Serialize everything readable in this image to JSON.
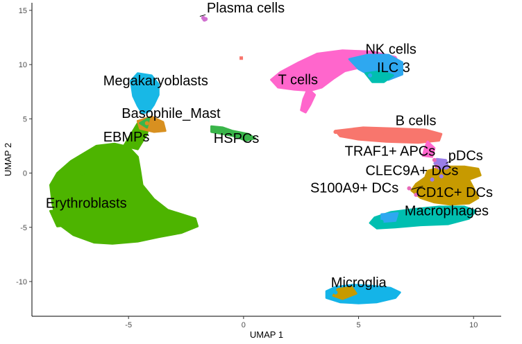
{
  "chart_data": {
    "type": "scatter",
    "title": "",
    "xlabel": "UMAP 1",
    "ylabel": "UMAP 2",
    "xlim": [
      -9.2,
      11.2
    ],
    "ylim": [
      -13.2,
      15.7
    ],
    "x_ticks": [
      -5,
      0,
      5,
      10
    ],
    "x_tick_labels": [
      "-5",
      "0",
      "5",
      "10"
    ],
    "y_ticks": [
      -10,
      -5,
      0,
      5,
      10,
      15
    ],
    "y_tick_labels": [
      "-10",
      "-5",
      "0",
      "5",
      "10",
      "15"
    ],
    "grid": false,
    "legend": "none",
    "colors": {
      "erythroblasts": "#4db400",
      "t_cells": "#ff66cc",
      "b_cells": "#f8766d",
      "nk_cells": "#2ea8f0",
      "megakaryoblasts": "#18b8e6",
      "microglia": "#14b4e8",
      "macrophages": "#00bfb0",
      "cd1c_dcs": "#c79a00",
      "hspcs": "#3ab54a",
      "basophile": "#d89020",
      "plasma": "#d070d0",
      "pdcs": "#9a7ee8",
      "traf1": "#e86ab8"
    },
    "clusters": [
      {
        "name": "Plasma cells",
        "label_x": -1.6,
        "label_y": 14.8,
        "points": [
          [
            -1.75,
            14.3
          ],
          [
            -1.7,
            14.15
          ],
          [
            -1.65,
            14.2
          ]
        ]
      },
      {
        "name": "NK cells",
        "label_x": 5.3,
        "label_y": 11.0,
        "points": [
          [
            5.0,
            10.2
          ],
          [
            5.8,
            10.0
          ],
          [
            6.3,
            9.6
          ],
          [
            5.5,
            9.0
          ]
        ]
      },
      {
        "name": "ILC 3",
        "label_x": 5.8,
        "label_y": 9.3,
        "points": [
          [
            6.0,
            9.0
          ],
          [
            5.7,
            8.6
          ]
        ]
      },
      {
        "name": "Megakaryoblasts",
        "label_x": -6.1,
        "label_y": 8.1,
        "points": [
          [
            -4.4,
            8.6
          ],
          [
            -4.2,
            7.4
          ],
          [
            -4.3,
            6.6
          ]
        ]
      },
      {
        "name": "T cells",
        "label_x": 1.5,
        "label_y": 8.2,
        "points": [
          [
            3.0,
            9.8
          ],
          [
            2.3,
            8.8
          ],
          [
            4.0,
            9.2
          ],
          [
            2.8,
            6.8
          ]
        ]
      },
      {
        "name": "Basophile_Mast",
        "label_x": -5.3,
        "label_y": 5.1,
        "points": [
          [
            -4.2,
            4.6
          ],
          [
            -3.9,
            4.2
          ],
          [
            -3.6,
            4.3
          ]
        ]
      },
      {
        "name": "B cells",
        "label_x": 6.6,
        "label_y": 4.4,
        "points": [
          [
            4.0,
            3.8
          ],
          [
            6.0,
            3.6
          ],
          [
            7.5,
            3.8
          ]
        ]
      },
      {
        "name": "EBMPs",
        "label_x": -6.1,
        "label_y": 2.9,
        "points": []
      },
      {
        "name": "HSPCs",
        "label_x": -1.3,
        "label_y": 2.8,
        "points": [
          [
            -1.2,
            4.0
          ],
          [
            -0.6,
            3.8
          ],
          [
            0.3,
            3.2
          ]
        ]
      },
      {
        "name": "TRAF1+ APCs",
        "label_x": 4.4,
        "label_y": 1.6,
        "points": [
          [
            8.3,
            1.2
          ],
          [
            8.4,
            0.6
          ]
        ]
      },
      {
        "name": "pDCs",
        "label_x": 8.9,
        "label_y": 1.2,
        "points": [
          [
            8.6,
            0.9
          ],
          [
            8.8,
            0.5
          ]
        ]
      },
      {
        "name": "CLEC9A+ DCs",
        "label_x": 5.3,
        "label_y": -0.2,
        "points": [
          [
            8.2,
            -0.6
          ],
          [
            8.6,
            -0.3
          ]
        ]
      },
      {
        "name": "S100A9+ DCs",
        "label_x": 2.9,
        "label_y": -1.8,
        "points": [
          [
            7.2,
            -1.4
          ],
          [
            7.5,
            -2.0
          ]
        ]
      },
      {
        "name": "CD1C+ DCs",
        "label_x": 7.5,
        "label_y": -2.2,
        "points": [
          [
            9.0,
            -1.0
          ],
          [
            9.5,
            -2.0
          ],
          [
            10.0,
            0.0
          ]
        ]
      },
      {
        "name": "Macrophages",
        "label_x": 7.0,
        "label_y": -3.9,
        "points": [
          [
            6.0,
            -4.5
          ],
          [
            7.5,
            -3.7
          ],
          [
            9.0,
            -3.5
          ]
        ]
      },
      {
        "name": "Erythroblasts",
        "label_x": -8.6,
        "label_y": -3.2,
        "points": [
          [
            -7.0,
            0.0
          ],
          [
            -5.5,
            -3.0
          ],
          [
            -5.0,
            -5.5
          ]
        ]
      },
      {
        "name": "Microglia",
        "label_x": 3.8,
        "label_y": -10.5,
        "points": [
          [
            4.0,
            -11.0
          ],
          [
            5.0,
            -11.3
          ],
          [
            6.0,
            -11.2
          ]
        ]
      }
    ],
    "stray_points": [
      {
        "x": -0.1,
        "y": 10.6,
        "cluster": "B cells"
      }
    ]
  }
}
